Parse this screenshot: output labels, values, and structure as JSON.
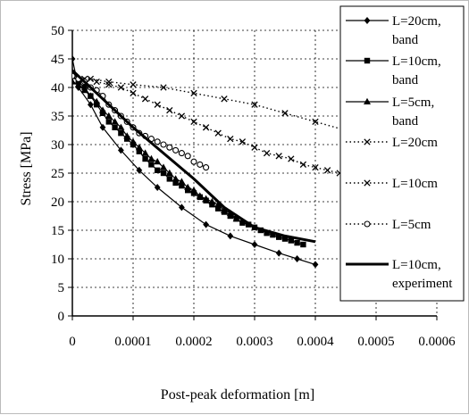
{
  "chart_data": {
    "type": "line",
    "title": "",
    "xlabel": "Post-peak deformation [m]",
    "ylabel": "Stress [MPa]",
    "xlim": [
      0,
      0.0006
    ],
    "ylim": [
      0,
      50
    ],
    "x_ticks": [
      0,
      0.0001,
      0.0002,
      0.0003,
      0.0004,
      0.0005,
      0.0006
    ],
    "x_tick_labels": [
      "0",
      "0.0001",
      "0.0002",
      "0.0003",
      "0.0004",
      "0.0005",
      "0.0006"
    ],
    "y_ticks": [
      0,
      5,
      10,
      15,
      20,
      25,
      30,
      35,
      40,
      45,
      50
    ],
    "y_tick_labels": [
      "0",
      "5",
      "10",
      "15",
      "20",
      "25",
      "30",
      "35",
      "40",
      "45",
      "50"
    ],
    "grid": "dashed",
    "legend_position": "right",
    "series": [
      {
        "name": "L=20cm, band",
        "legend_lines": [
          "L=20cm,",
          "band"
        ],
        "marker": "diamond",
        "line": "solid",
        "color": "#000000",
        "x": [
          0,
          1e-05,
          3e-05,
          5e-05,
          8e-05,
          0.00011,
          0.00014,
          0.00018,
          0.00022,
          0.00026,
          0.0003,
          0.00034,
          0.00037,
          0.0004
        ],
        "y": [
          45,
          40,
          37,
          33,
          29,
          25.5,
          22.5,
          19,
          16,
          14,
          12.5,
          11,
          10,
          9
        ]
      },
      {
        "name": "L=10cm, band",
        "legend_lines": [
          "L=10cm,",
          "band"
        ],
        "marker": "square",
        "line": "solid",
        "color": "#000000",
        "x": [
          0,
          1e-05,
          2e-05,
          3e-05,
          4e-05,
          5e-05,
          6e-05,
          7e-05,
          8e-05,
          9e-05,
          0.0001,
          0.00011,
          0.00012,
          0.00013,
          0.00014,
          0.00015,
          0.00016,
          0.00017,
          0.00018,
          0.00019,
          0.0002,
          0.00021,
          0.00022,
          0.00023,
          0.00024,
          0.00025,
          0.00026,
          0.00027,
          0.00028,
          0.00029,
          0.0003,
          0.00031,
          0.00032,
          0.00033,
          0.00034,
          0.00035,
          0.00036,
          0.00037,
          0.00038
        ],
        "y": [
          42,
          41,
          40,
          38.5,
          37,
          35.5,
          34,
          33,
          32,
          31,
          30,
          28.8,
          27.5,
          26.5,
          25.5,
          25,
          24,
          23.3,
          22.8,
          22,
          21.5,
          20.8,
          20.2,
          19.5,
          18.8,
          18.2,
          17.5,
          17,
          16.3,
          16,
          15.5,
          15,
          14.5,
          14.2,
          13.8,
          13.5,
          13.2,
          12.8,
          12.5
        ]
      },
      {
        "name": "L=5cm, band",
        "legend_lines": [
          "L=5cm,",
          "band"
        ],
        "marker": "triangle",
        "line": "solid",
        "color": "#000000",
        "x": [
          0,
          1e-05,
          2e-05,
          3e-05,
          4e-05,
          5e-05,
          6e-05,
          7e-05,
          8e-05,
          9e-05,
          0.0001,
          0.00011,
          0.00012,
          0.00013,
          0.00014,
          0.00015,
          0.00016,
          0.00017,
          0.00018,
          0.00019,
          0.0002,
          0.00021,
          0.00022,
          0.00023,
          0.00024,
          0.00025,
          0.00026,
          0.00027
        ],
        "y": [
          41,
          40.5,
          39.5,
          38.5,
          37.5,
          36,
          35,
          34,
          33,
          31.5,
          30.5,
          29.5,
          28.5,
          27.5,
          27,
          26,
          25,
          24,
          23.5,
          22.5,
          22,
          21,
          20.5,
          20,
          19.5,
          18.5,
          18,
          17
        ]
      },
      {
        "name": "L=20cm",
        "legend_lines": [
          "L=20cm"
        ],
        "marker": "x",
        "line": "dotted",
        "color": "#000000",
        "x": [
          0,
          3e-05,
          6e-05,
          0.0001,
          0.00015,
          0.0002,
          0.00025,
          0.0003,
          0.00035,
          0.0004,
          0.00045,
          0.0005
        ],
        "y": [
          42,
          41.5,
          41,
          40.5,
          40,
          39,
          38,
          37,
          35.5,
          34,
          32.5,
          31
        ]
      },
      {
        "name": "L=10cm",
        "legend_lines": [
          "L=10cm"
        ],
        "marker": "x",
        "line": "dotted",
        "color": "#000000",
        "x": [
          0,
          2e-05,
          4e-05,
          6e-05,
          8e-05,
          0.0001,
          0.00012,
          0.00014,
          0.00016,
          0.00018,
          0.0002,
          0.00022,
          0.00024,
          0.00026,
          0.00028,
          0.0003,
          0.00032,
          0.00034,
          0.00036,
          0.00038,
          0.0004,
          0.00042,
          0.00044,
          0.00046,
          0.00048,
          0.0005
        ],
        "y": [
          42,
          41.5,
          41,
          40.5,
          40,
          39,
          38,
          37,
          36,
          35,
          34,
          33,
          32,
          31,
          30.5,
          29.5,
          28.5,
          28,
          27.5,
          26.5,
          26,
          25.5,
          25,
          24.5,
          24,
          23.5
        ]
      },
      {
        "name": "L=5cm",
        "legend_lines": [
          "L=5cm"
        ],
        "marker": "circle",
        "line": "dotted",
        "color": "#000000",
        "x": [
          0,
          1e-05,
          2e-05,
          3e-05,
          4e-05,
          5e-05,
          6e-05,
          7e-05,
          8e-05,
          9e-05,
          0.0001,
          0.00011,
          0.00012,
          0.00013,
          0.00014,
          0.00015,
          0.00016,
          0.00017,
          0.00018,
          0.00019,
          0.0002,
          0.00021,
          0.00022
        ],
        "y": [
          42,
          41.5,
          41,
          40,
          39.5,
          38.5,
          37,
          36,
          35,
          34,
          33,
          32,
          31.5,
          31,
          30.5,
          30,
          29.5,
          29,
          28.5,
          28,
          27,
          26.5,
          26
        ]
      },
      {
        "name": "L=10cm, experiment",
        "legend_lines": [
          "L=10cm,",
          "experiment"
        ],
        "marker": "none",
        "line": "bold",
        "color": "#000000",
        "x": [
          0,
          2e-05,
          5e-05,
          0.0001,
          0.00015,
          0.0002,
          0.00025,
          0.0003,
          0.00035,
          0.0004
        ],
        "y": [
          43,
          41,
          38,
          33,
          28.5,
          24,
          19,
          15.5,
          14,
          13
        ]
      }
    ]
  }
}
